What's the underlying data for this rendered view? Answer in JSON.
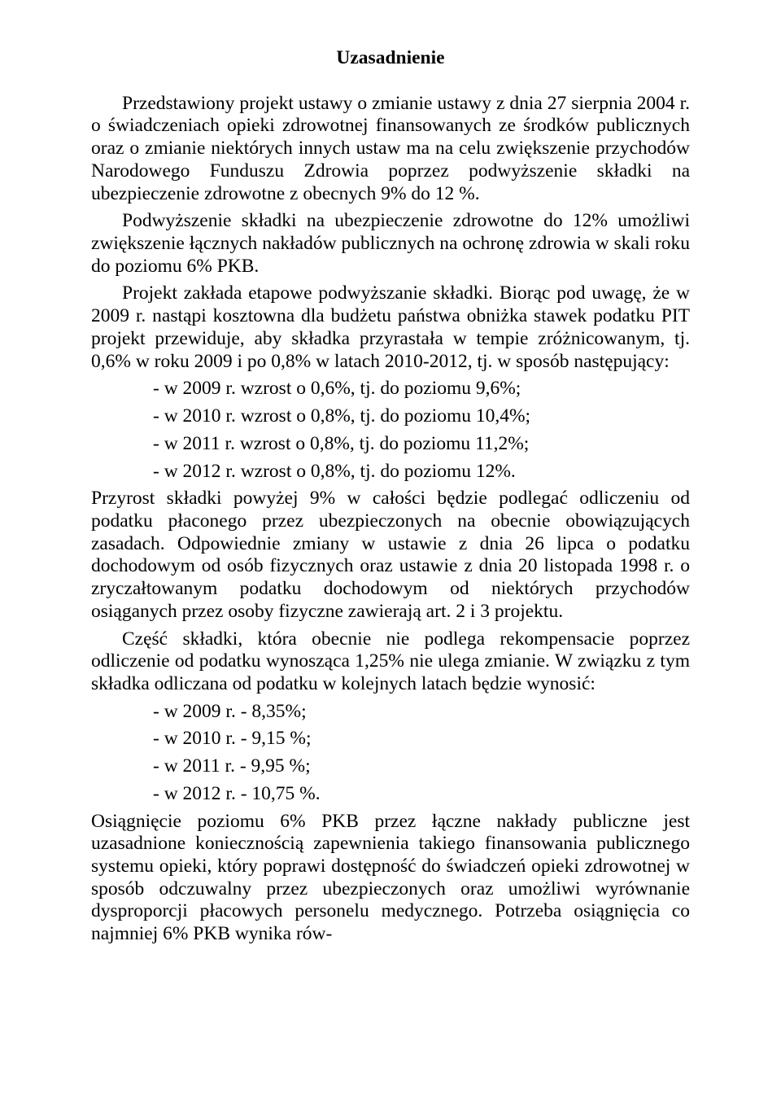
{
  "title": "Uzasadnienie",
  "p1": "Przedstawiony projekt ustawy o zmianie ustawy z dnia 27 sierpnia 2004 r. o świadczeniach opieki zdrowotnej finansowanych ze środków publicznych oraz o zmianie niektórych innych ustaw ma na celu zwiększenie przychodów Narodowego Funduszu Zdrowia poprzez podwyższenie składki na ubezpieczenie zdrowotne z obecnych 9% do 12 %.",
  "p2": "Podwyższenie składki na ubezpieczenie zdrowotne do 12% umożliwi zwiększenie łącznych nakładów publicznych na ochronę zdrowia w skali roku do poziomu 6% PKB.",
  "p3": "Projekt zakłada etapowe podwyższanie składki. Biorąc pod uwagę, że w 2009 r. nastąpi kosztowna dla budżetu państwa obniżka stawek podatku PIT projekt przewiduje, aby składka przyrastała w tempie zróżnicowanym, tj. 0,6% w roku 2009 i po 0,8% w latach 2010-2012, tj. w sposób następujący:",
  "list1": [
    "- w 2009 r. wzrost o 0,6%, tj. do poziomu 9,6%;",
    "- w 2010 r. wzrost o 0,8%, tj. do poziomu 10,4%;",
    "- w 2011 r. wzrost o 0,8%, tj. do poziomu 11,2%;",
    "- w 2012 r. wzrost o 0,8%, tj. do poziomu 12%."
  ],
  "p4": "Przyrost składki powyżej 9% w całości będzie podlegać odliczeniu od podatku płaconego przez ubezpieczonych na obecnie obowiązujących zasadach. Odpowiednie zmiany w ustawie z dnia 26 lipca o podatku dochodowym od osób fizycznych oraz ustawie z dnia 20 listopada 1998 r. o zryczałtowanym podatku dochodowym od niektórych przychodów osiąganych przez osoby fizyczne zawierają art. 2 i 3 projektu.",
  "p5": "Część składki, która obecnie nie podlega rekompensacie poprzez odliczenie od podatku wynosząca 1,25% nie ulega zmianie. W związku z tym składka odliczana od podatku w kolejnych latach będzie wynosić:",
  "list2": [
    "- w 2009 r. - 8,35%;",
    "- w 2010 r. - 9,15 %;",
    "- w 2011 r. - 9,95 %;",
    "- w 2012 r. - 10,75 %."
  ],
  "p6": "Osiągnięcie poziomu 6% PKB przez łączne nakłady publiczne jest uzasadnione koniecznością zapewnienia takiego finansowania publicznego systemu opieki, który poprawi dostępność do świadczeń opieki zdrowotnej w sposób odczuwalny przez ubezpieczonych oraz umożliwi wyrównanie dysproporcji płacowych personelu medycznego. Potrzeba osiągnięcia co najmniej 6% PKB wynika rów-"
}
